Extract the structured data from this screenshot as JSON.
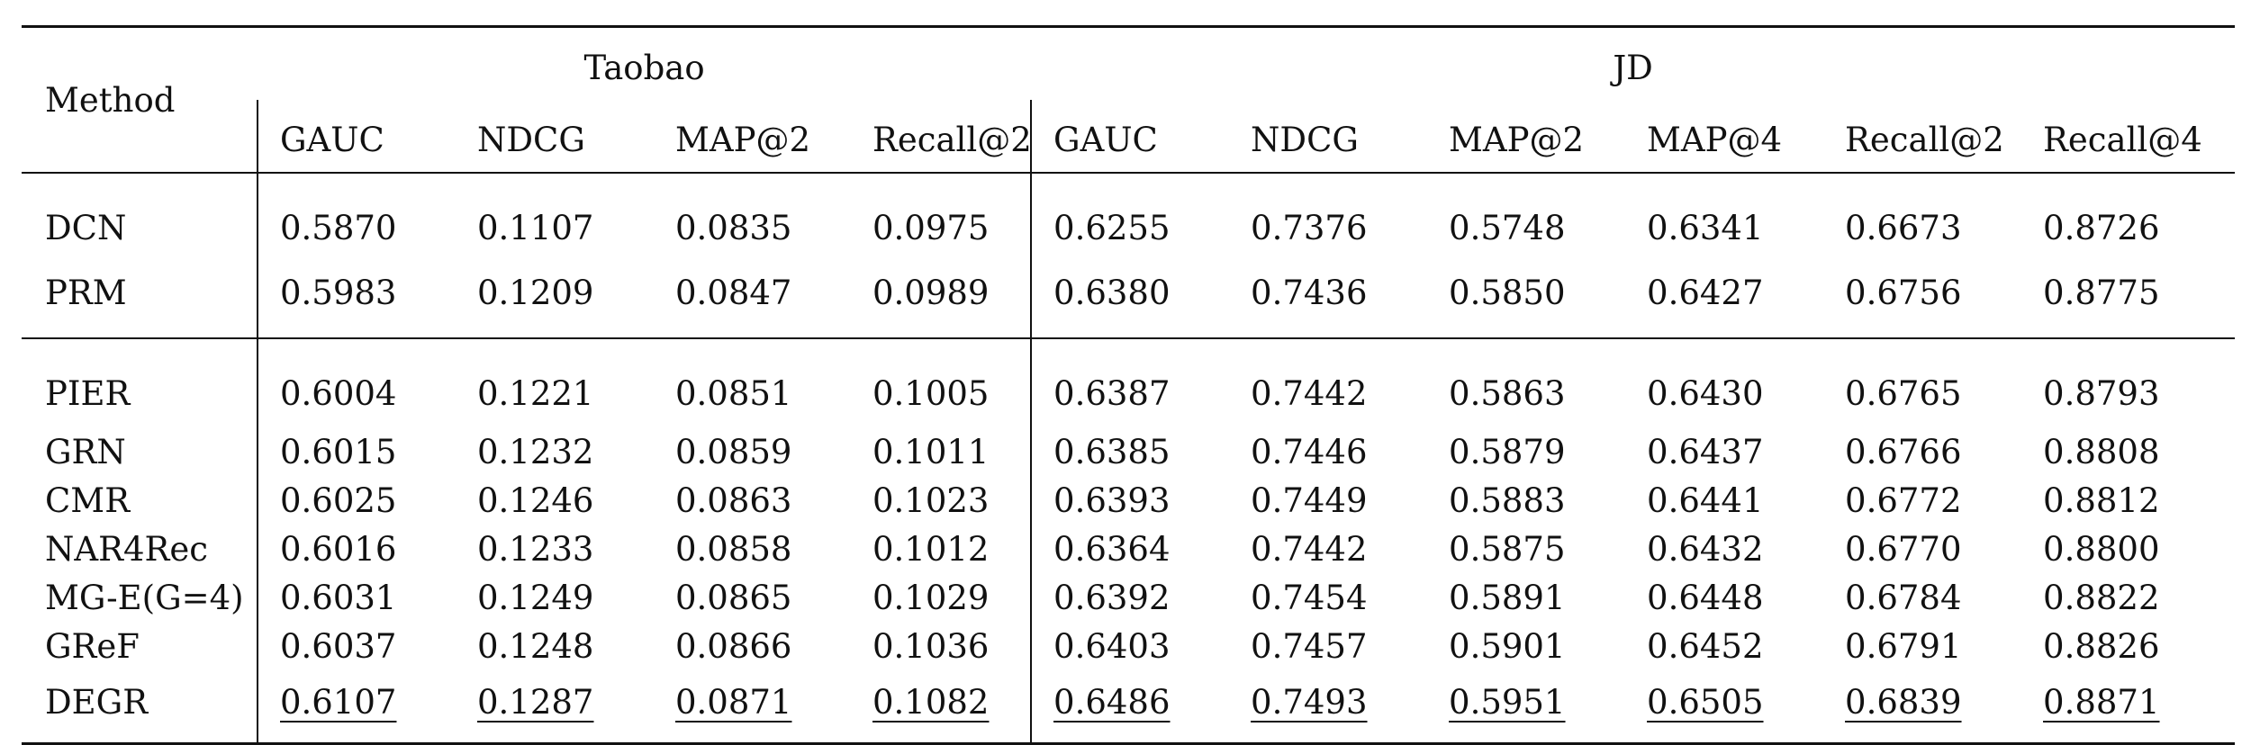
{
  "table": {
    "method_header": "Method",
    "groups": [
      {
        "name": "Taobao",
        "metrics": [
          "GAUC",
          "NDCG",
          "MAP@2",
          "Recall@2"
        ]
      },
      {
        "name": "JD",
        "metrics": [
          "GAUC",
          "NDCG",
          "MAP@2",
          "MAP@4",
          "Recall@2",
          "Recall@4"
        ]
      }
    ],
    "sections": [
      {
        "rows": [
          {
            "method": "DCN",
            "values": [
              "0.5870",
              "0.1107",
              "0.0835",
              "0.0975",
              "0.6255",
              "0.7376",
              "0.5748",
              "0.6341",
              "0.6673",
              "0.8726"
            ]
          },
          {
            "method": "PRM",
            "values": [
              "0.5983",
              "0.1209",
              "0.0847",
              "0.0989",
              "0.6380",
              "0.7436",
              "0.5850",
              "0.6427",
              "0.6756",
              "0.8775"
            ]
          }
        ]
      },
      {
        "rows": [
          {
            "method": "PIER",
            "values": [
              "0.6004",
              "0.1221",
              "0.0851",
              "0.1005",
              "0.6387",
              "0.7442",
              "0.5863",
              "0.6430",
              "0.6765",
              "0.8793"
            ]
          },
          {
            "method": "GRN",
            "values": [
              "0.6015",
              "0.1232",
              "0.0859",
              "0.1011",
              "0.6385",
              "0.7446",
              "0.5879",
              "0.6437",
              "0.6766",
              "0.8808"
            ]
          },
          {
            "method": "CMR",
            "values": [
              "0.6025",
              "0.1246",
              "0.0863",
              "0.1023",
              "0.6393",
              "0.7449",
              "0.5883",
              "0.6441",
              "0.6772",
              "0.8812"
            ]
          },
          {
            "method": "NAR4Rec",
            "values": [
              "0.6016",
              "0.1233",
              "0.0858",
              "0.1012",
              "0.6364",
              "0.7442",
              "0.5875",
              "0.6432",
              "0.6770",
              "0.8800"
            ]
          },
          {
            "method": "MG-E(G=4)",
            "values": [
              "0.6031",
              "0.1249",
              "0.0865",
              "0.1029",
              "0.6392",
              "0.7454",
              "0.5891",
              "0.6448",
              "0.6784",
              "0.8822"
            ]
          },
          {
            "method": "GReF",
            "values": [
              "0.6037",
              "0.1248",
              "0.0866",
              "0.1036",
              "0.6403",
              "0.7457",
              "0.5901",
              "0.6452",
              "0.6791",
              "0.8826"
            ]
          },
          {
            "method": "DEGR",
            "values": [
              "0.6107",
              "0.1287",
              "0.0871",
              "0.1082",
              "0.6486",
              "0.7493",
              "0.5951",
              "0.6505",
              "0.6839",
              "0.8871"
            ],
            "underlined": true
          }
        ]
      }
    ]
  }
}
